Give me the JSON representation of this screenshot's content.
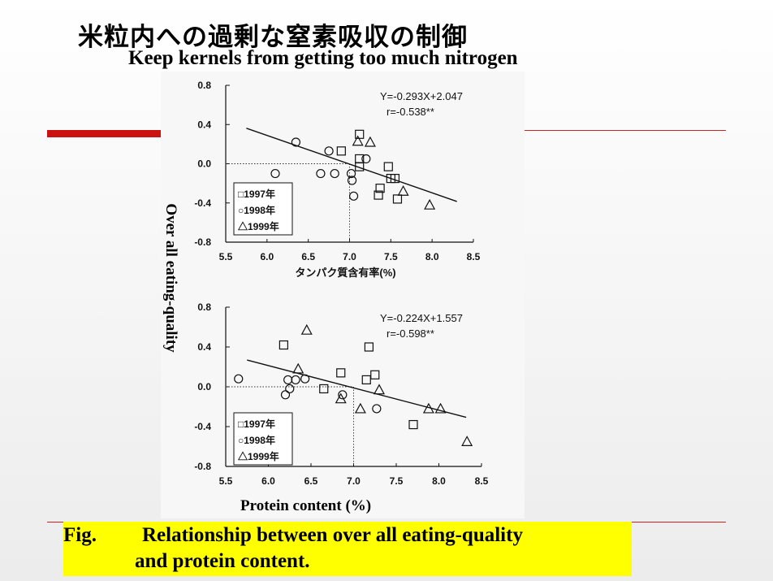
{
  "slide": {
    "title_jp": "米粒内への過剰な窒素吸収の制御",
    "title_en": "Keep kernels from getting too much nitrogen",
    "y_axis_label": "Over all eating-quality",
    "x_axis_label": "Protein content (%)",
    "caption_prefix": "Fig.",
    "caption_line1": "Relationship between over all eating-quality",
    "caption_line2": "and protein content.",
    "accent_color": "#cc1111",
    "caption_bg": "#ffff00"
  },
  "chart_data": [
    {
      "type": "scatter",
      "xlabel": "タンパク質含有率(%)",
      "ylabel": "",
      "xlim": [
        5.5,
        8.5
      ],
      "ylim": [
        -0.8,
        0.8
      ],
      "x_ticks": [
        "5.5",
        "6.0",
        "6.5",
        "7.0",
        "7.5",
        "8.0",
        "8.5"
      ],
      "y_ticks": [
        "0.8",
        "0.4",
        "0.0",
        "-0.4",
        "-0.8"
      ],
      "equation": "Y=-0.293X+2.047",
      "r_text": "r=-0.538**",
      "regression": {
        "slope": -0.293,
        "intercept": 2.047,
        "x_range": [
          5.75,
          8.3
        ]
      },
      "reference": {
        "x": 7.0,
        "y": 0.0
      },
      "legend": [
        "□1997年",
        "○1998年",
        "△1999年"
      ],
      "series": [
        {
          "name": "1997年",
          "marker": "square",
          "points": [
            [
              6.9,
              0.13
            ],
            [
              7.12,
              0.3
            ],
            [
              7.12,
              0.05
            ],
            [
              7.12,
              -0.03
            ],
            [
              7.47,
              -0.03
            ],
            [
              7.5,
              -0.15
            ],
            [
              7.55,
              -0.15
            ],
            [
              7.37,
              -0.25
            ],
            [
              7.35,
              -0.32
            ],
            [
              7.58,
              -0.36
            ]
          ]
        },
        {
          "name": "1998年",
          "marker": "circle",
          "points": [
            [
              6.35,
              0.22
            ],
            [
              6.75,
              0.13
            ],
            [
              6.1,
              -0.1
            ],
            [
              6.65,
              -0.1
            ],
            [
              6.82,
              -0.1
            ],
            [
              7.02,
              -0.1
            ],
            [
              7.03,
              -0.17
            ],
            [
              7.05,
              -0.33
            ],
            [
              7.2,
              0.05
            ]
          ]
        },
        {
          "name": "1999年",
          "marker": "triangle",
          "points": [
            [
              7.1,
              0.23
            ],
            [
              7.25,
              0.22
            ],
            [
              7.65,
              -0.28
            ],
            [
              7.97,
              -0.42
            ]
          ]
        }
      ]
    },
    {
      "type": "scatter",
      "xlabel": "",
      "ylabel": "",
      "xlim": [
        5.5,
        8.5
      ],
      "ylim": [
        -0.8,
        0.8
      ],
      "x_ticks": [
        "5.5",
        "6.0",
        "6.5",
        "7.0",
        "7.5",
        "8.0",
        "8.5"
      ],
      "y_ticks": [
        "0.8",
        "0.4",
        "0.0",
        "-0.4",
        "-0.8"
      ],
      "equation": "Y=-0.224X+1.557",
      "r_text": "r=-0.598**",
      "regression": {
        "slope": -0.224,
        "intercept": 1.557,
        "x_range": [
          5.75,
          8.32
        ]
      },
      "reference": {
        "x": 7.0,
        "y": 0.0
      },
      "legend": [
        "□1997年",
        "○1998年",
        "△1999年"
      ],
      "series": [
        {
          "name": "1997年",
          "marker": "square",
          "points": [
            [
              6.18,
              0.42
            ],
            [
              7.18,
              0.4
            ],
            [
              6.85,
              0.14
            ],
            [
              7.25,
              0.12
            ],
            [
              7.15,
              0.07
            ],
            [
              6.65,
              -0.02
            ],
            [
              7.7,
              -0.38
            ]
          ]
        },
        {
          "name": "1998年",
          "marker": "circle",
          "points": [
            [
              5.65,
              0.08
            ],
            [
              6.23,
              0.07
            ],
            [
              6.32,
              0.07
            ],
            [
              6.43,
              0.08
            ],
            [
              6.25,
              -0.02
            ],
            [
              6.2,
              -0.08
            ],
            [
              6.87,
              -0.08
            ],
            [
              7.27,
              -0.22
            ]
          ]
        },
        {
          "name": "1999年",
          "marker": "triangle",
          "points": [
            [
              6.45,
              0.57
            ],
            [
              6.35,
              0.18
            ],
            [
              7.3,
              -0.03
            ],
            [
              6.85,
              -0.12
            ],
            [
              7.08,
              -0.22
            ],
            [
              7.88,
              -0.22
            ],
            [
              8.02,
              -0.22
            ],
            [
              8.33,
              -0.55
            ]
          ]
        }
      ]
    }
  ]
}
